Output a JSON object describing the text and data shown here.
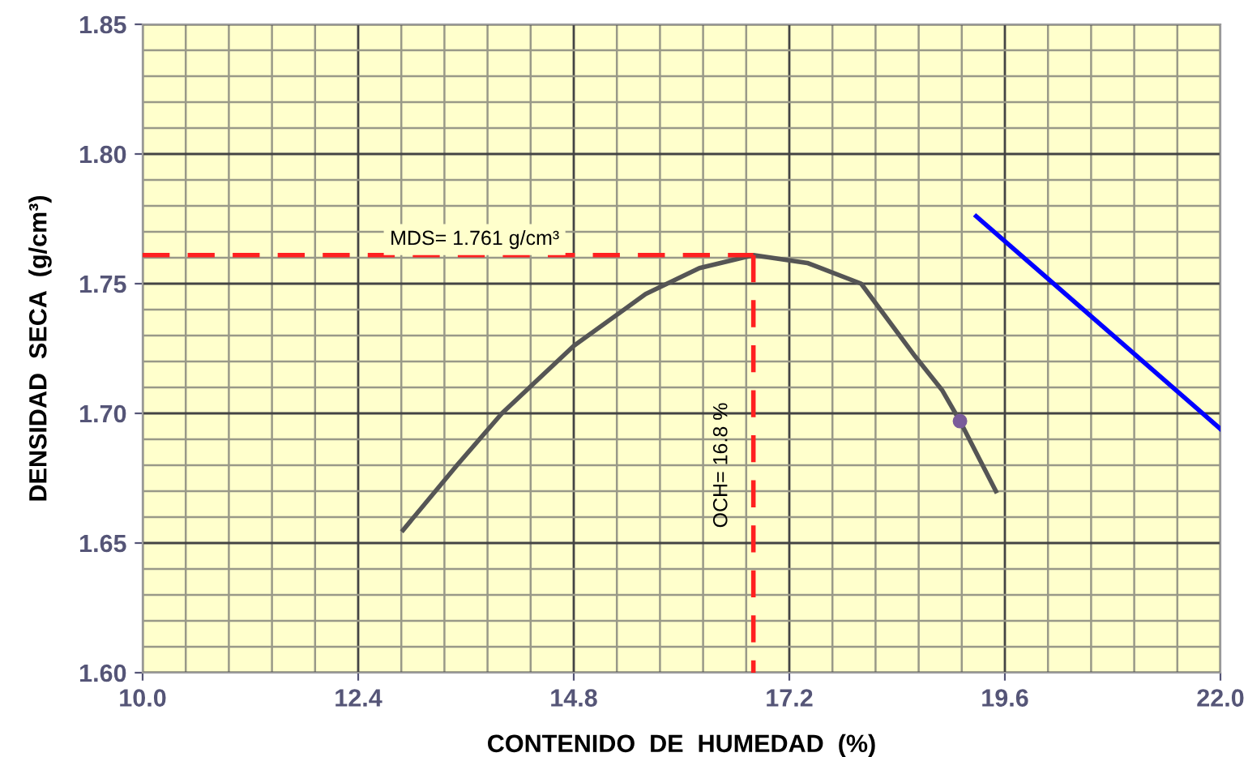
{
  "chart_data": {
    "type": "line",
    "xlabel": "CONTENIDO  DE  HUMEDAD  (%)",
    "ylabel": "DENSIDAD  SECA  (g/cm³)",
    "series": [
      {
        "color": "#555555",
        "x": [
          12.9,
          13.5,
          14.0,
          14.8,
          15.6,
          16.2,
          16.8,
          17.4,
          18.0,
          18.6,
          18.9,
          19.1,
          19.5
        ],
        "values": [
          1.655,
          1.68,
          1.7,
          1.726,
          1.746,
          1.756,
          1.761,
          1.758,
          1.75,
          1.722,
          1.709,
          1.697,
          1.67
        ]
      },
      {
        "type": "scatter",
        "color": "#7a5c9a",
        "marker": "circle",
        "x": [
          19.1
        ],
        "values": [
          1.697
        ]
      },
      {
        "color": "#0000ff",
        "x": [
          19.28,
          22.0
        ],
        "values": [
          1.776,
          1.694
        ]
      },
      {
        "color": "#ff2020",
        "line_style": "dashed",
        "x": [
          10.0,
          16.8
        ],
        "values": [
          1.761,
          1.761
        ]
      },
      {
        "color": "#ff2020",
        "line_style": "dashed",
        "x": [
          16.8,
          16.8
        ],
        "values": [
          1.761,
          1.6
        ]
      }
    ],
    "annotations": [
      "MDS= 1.761 g/cm³",
      "OCH= 16.8 %"
    ],
    "xlim": [
      10.0,
      22.0
    ],
    "ylim": [
      1.6,
      1.85
    ],
    "xticks": [
      {
        "value": 10.0,
        "label": "10.0"
      },
      {
        "value": 10.48,
        "label": null
      },
      {
        "value": 10.96,
        "label": null
      },
      {
        "value": 11.44,
        "label": null
      },
      {
        "value": 11.92,
        "label": null
      },
      {
        "value": 12.4,
        "label": "12.4"
      },
      {
        "value": 12.88,
        "label": null
      },
      {
        "value": 13.36,
        "label": null
      },
      {
        "value": 13.84,
        "label": null
      },
      {
        "value": 14.32,
        "label": null
      },
      {
        "value": 14.8,
        "label": "14.8"
      },
      {
        "value": 15.28,
        "label": null
      },
      {
        "value": 15.76,
        "label": null
      },
      {
        "value": 16.24,
        "label": null
      },
      {
        "value": 16.72,
        "label": null
      },
      {
        "value": 17.2,
        "label": "17.2"
      },
      {
        "value": 17.68,
        "label": null
      },
      {
        "value": 18.16,
        "label": null
      },
      {
        "value": 18.64,
        "label": null
      },
      {
        "value": 19.12,
        "label": null
      },
      {
        "value": 19.6,
        "label": "19.6"
      },
      {
        "value": 20.08,
        "label": null
      },
      {
        "value": 20.56,
        "label": null
      },
      {
        "value": 21.04,
        "label": null
      },
      {
        "value": 21.52,
        "label": null
      },
      {
        "value": 22.0,
        "label": "22.0"
      }
    ],
    "yticks": [
      {
        "value": 1.6,
        "label": "1.60"
      },
      {
        "value": 1.61,
        "label": null
      },
      {
        "value": 1.62,
        "label": null
      },
      {
        "value": 1.63,
        "label": null
      },
      {
        "value": 1.64,
        "label": null
      },
      {
        "value": 1.65,
        "label": "1.65"
      },
      {
        "value": 1.66,
        "label": null
      },
      {
        "value": 1.67,
        "label": null
      },
      {
        "value": 1.68,
        "label": null
      },
      {
        "value": 1.69,
        "label": null
      },
      {
        "value": 1.7,
        "label": "1.70"
      },
      {
        "value": 1.71,
        "label": null
      },
      {
        "value": 1.72,
        "label": null
      },
      {
        "value": 1.73,
        "label": null
      },
      {
        "value": 1.74,
        "label": null
      },
      {
        "value": 1.75,
        "label": "1.75"
      },
      {
        "value": 1.76,
        "label": null
      },
      {
        "value": 1.77,
        "label": null
      },
      {
        "value": 1.78,
        "label": null
      },
      {
        "value": 1.79,
        "label": null
      },
      {
        "value": 1.8,
        "label": "1.80"
      },
      {
        "value": 1.81,
        "label": null
      },
      {
        "value": 1.82,
        "label": null
      },
      {
        "value": 1.83,
        "label": null
      },
      {
        "value": 1.84,
        "label": null
      },
      {
        "value": 1.85,
        "label": "1.85"
      }
    ],
    "grid": true
  }
}
